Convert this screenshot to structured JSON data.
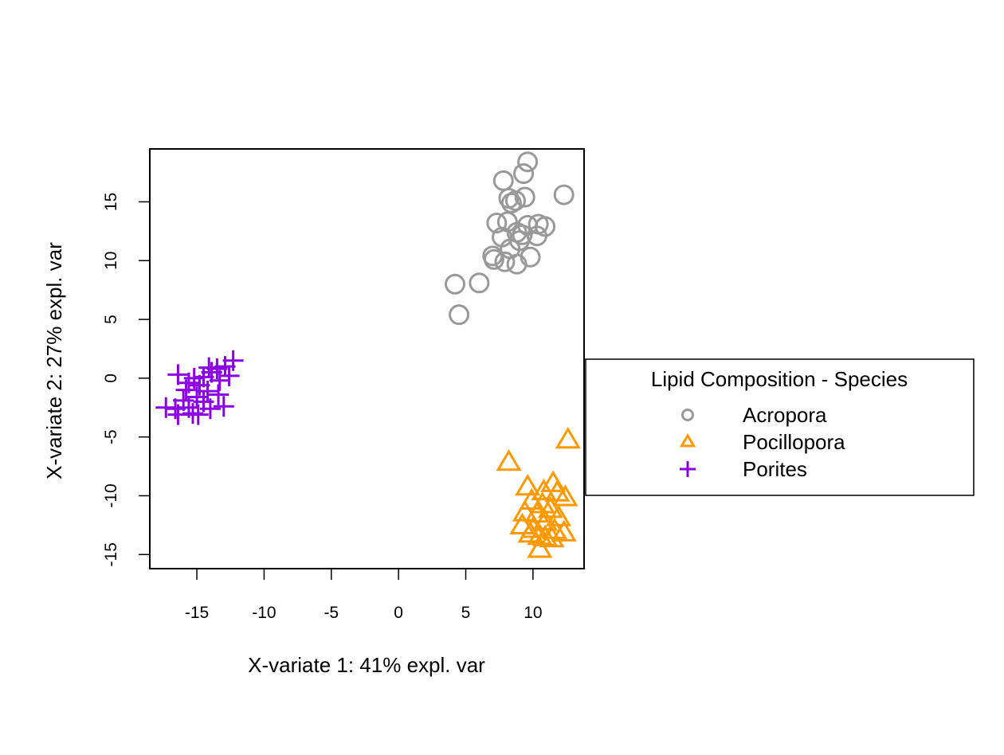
{
  "chart_data": {
    "type": "scatter",
    "title": "",
    "xlabel": "X-variate 1: 41% expl. var",
    "ylabel": "X-variate 2: 27% expl. var",
    "xlim": [
      -18.5,
      13.8
    ],
    "ylim": [
      -16.2,
      19.5
    ],
    "xticks": [
      -15,
      -10,
      -5,
      0,
      5,
      10
    ],
    "yticks": [
      -15,
      -10,
      -5,
      0,
      5,
      10,
      15
    ],
    "grid": false,
    "legend": {
      "title": "Lipid Composition - Species",
      "position": "right"
    },
    "series": [
      {
        "name": "Acropora",
        "marker": "circle",
        "color": "#999999",
        "points": [
          [
            9.6,
            18.4
          ],
          [
            9.3,
            17.4
          ],
          [
            7.8,
            16.8
          ],
          [
            12.3,
            15.6
          ],
          [
            8.2,
            15.3
          ],
          [
            8.7,
            15.1
          ],
          [
            9.4,
            15.4
          ],
          [
            8.4,
            14.9
          ],
          [
            7.3,
            13.2
          ],
          [
            8.1,
            13.3
          ],
          [
            9.6,
            13.0
          ],
          [
            10.4,
            13.1
          ],
          [
            10.9,
            12.9
          ],
          [
            8.8,
            12.4
          ],
          [
            9.2,
            12.2
          ],
          [
            7.7,
            12.0
          ],
          [
            10.3,
            12.1
          ],
          [
            9.0,
            11.7
          ],
          [
            8.3,
            11.0
          ],
          [
            7.0,
            10.4
          ],
          [
            7.1,
            10.1
          ],
          [
            7.9,
            9.9
          ],
          [
            8.8,
            9.7
          ],
          [
            9.8,
            10.3
          ],
          [
            4.2,
            8.0
          ],
          [
            6.0,
            8.1
          ],
          [
            4.5,
            5.4
          ]
        ]
      },
      {
        "name": "Pocillopora",
        "marker": "triangle",
        "color": "#FF9900",
        "points": [
          [
            12.6,
            -5.3
          ],
          [
            8.2,
            -7.2
          ],
          [
            9.6,
            -9.3
          ],
          [
            11.5,
            -9.0
          ],
          [
            10.8,
            -9.7
          ],
          [
            11.8,
            -9.8
          ],
          [
            12.4,
            -10.2
          ],
          [
            9.9,
            -10.5
          ],
          [
            10.7,
            -10.8
          ],
          [
            11.3,
            -11.2
          ],
          [
            9.4,
            -11.5
          ],
          [
            10.3,
            -11.6
          ],
          [
            11.9,
            -11.9
          ],
          [
            10.9,
            -12.3
          ],
          [
            9.2,
            -12.6
          ],
          [
            10.0,
            -12.9
          ],
          [
            11.6,
            -13.0
          ],
          [
            9.8,
            -13.3
          ],
          [
            10.5,
            -13.5
          ],
          [
            12.3,
            -13.2
          ],
          [
            10.9,
            -13.6
          ],
          [
            11.4,
            -13.7
          ],
          [
            10.5,
            -14.6
          ]
        ]
      },
      {
        "name": "Porites",
        "marker": "plus",
        "color": "#8B00E6",
        "points": [
          [
            -12.3,
            1.5
          ],
          [
            -12.9,
            1.0
          ],
          [
            -13.5,
            0.8
          ],
          [
            -13.9,
            0.5
          ],
          [
            -14.1,
            0.9
          ],
          [
            -12.6,
            0.2
          ],
          [
            -13.3,
            -0.2
          ],
          [
            -14.5,
            0.1
          ],
          [
            -15.2,
            0.0
          ],
          [
            -16.4,
            0.3
          ],
          [
            -15.6,
            -0.4
          ],
          [
            -14.8,
            -0.6
          ],
          [
            -15.8,
            -1.0
          ],
          [
            -14.2,
            -1.1
          ],
          [
            -13.4,
            -1.4
          ],
          [
            -15.0,
            -1.6
          ],
          [
            -16.0,
            -1.9
          ],
          [
            -14.5,
            -2.0
          ],
          [
            -13.0,
            -2.4
          ],
          [
            -15.6,
            -2.5
          ],
          [
            -16.6,
            -2.6
          ],
          [
            -17.3,
            -2.5
          ],
          [
            -14.0,
            -2.6
          ],
          [
            -14.9,
            -3.1
          ],
          [
            -16.4,
            -3.1
          ],
          [
            -15.3,
            -3.0
          ]
        ]
      }
    ]
  }
}
